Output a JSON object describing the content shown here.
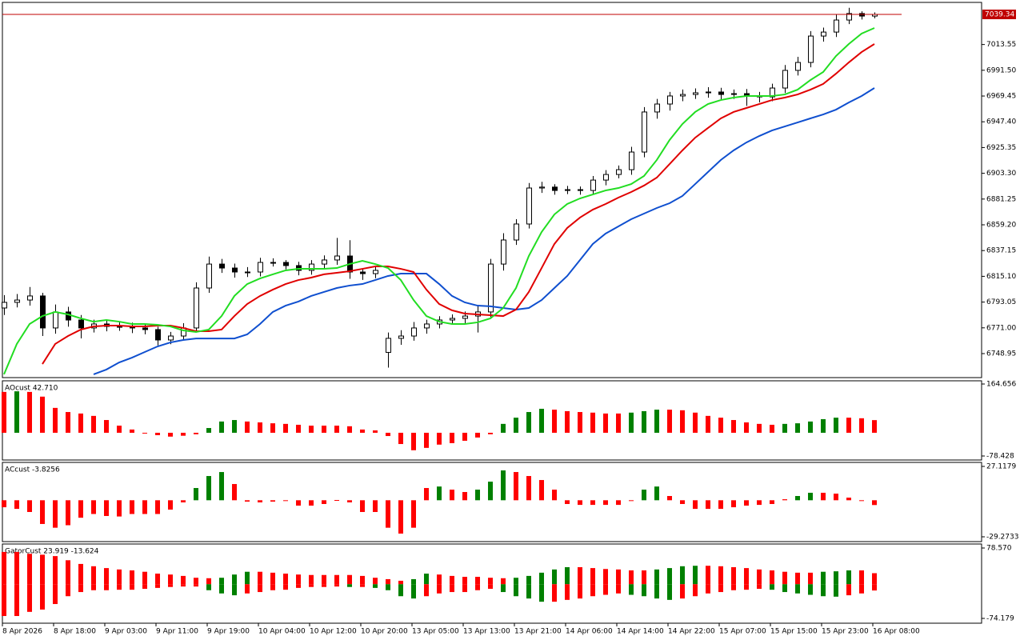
{
  "chart_data": [
    {
      "type": "candlestick",
      "categories": [
        "8 Apr 2026",
        null,
        null,
        null,
        "8 Apr 18:00",
        null,
        null,
        null,
        "9 Apr 03:00",
        null,
        null,
        null,
        "9 Apr 11:00",
        null,
        null,
        null,
        "9 Apr 19:00",
        null,
        null,
        null,
        "10 Apr 04:00",
        null,
        null,
        null,
        "10 Apr 12:00",
        null,
        null,
        null,
        "10 Apr 20:00",
        null,
        null,
        null,
        "13 Apr 05:00",
        null,
        null,
        null,
        "13 Apr 13:00",
        null,
        null,
        null,
        "13 Apr 21:00",
        null,
        null,
        null,
        "14 Apr 06:00",
        null,
        null,
        null,
        "14 Apr 14:00",
        null,
        null,
        null,
        "14 Apr 22:00",
        null,
        null,
        null,
        "15 Apr 07:00",
        null,
        null,
        null,
        "15 Apr 15:00",
        null,
        null,
        null,
        "15 Apr 23:00",
        null,
        null,
        null,
        "16 Apr 08:00"
      ],
      "open": [
        6788.0,
        6792.8,
        6794.8,
        6798.3,
        6770.9,
        6784.6,
        6777.7,
        6770.9,
        6774.3,
        6772.2,
        6772.2,
        6770.9,
        6769.5,
        6760.6,
        6764.0,
        6770.9,
        6805.1,
        6825.6,
        6822.2,
        6818.8,
        6818.8,
        6827.0,
        6827.0,
        6824.3,
        6820.2,
        6825.6,
        6829.1,
        6832.5,
        6818.8,
        6817.4,
        6750.0,
        6762.0,
        6764.0,
        6770.9,
        6774.3,
        6777.7,
        6779.1,
        6781.1,
        6784.6,
        6825.6,
        6846.2,
        6859.9,
        6890.7,
        6891.5,
        6888.6,
        6889.3,
        6888.6,
        6897.5,
        6902.3,
        6906.4,
        6921.5,
        6955.8,
        6962.6,
        6969.5,
        6970.8,
        6972.2,
        6972.9,
        6970.8,
        6971.5,
        6969.5,
        6968.7,
        6976.3,
        6991.4,
        6998.2,
        7020.8,
        7024.2,
        7034.5,
        7040.1,
        7037.9
      ],
      "high": [
        6799.0,
        6800.0,
        6806.0,
        6801.0,
        6791.0,
        6789.0,
        6782.0,
        6778.0,
        6777.5,
        6776.0,
        6775.5,
        6774.0,
        6772.0,
        6767.5,
        6775.0,
        6810.0,
        6832.0,
        6830.0,
        6826.0,
        6823.0,
        6831.0,
        6830.5,
        6829.0,
        6827.5,
        6829.0,
        6833.0,
        6848.0,
        6846.0,
        6822.0,
        6824.0,
        6767.0,
        6769.0,
        6776.0,
        6778.0,
        6781.0,
        6782.5,
        6785.0,
        6790.0,
        6830.0,
        6852.0,
        6864.0,
        6895.0,
        6896.0,
        6894.0,
        6892.5,
        6892.0,
        6901.0,
        6906.0,
        6910.0,
        6926.0,
        6960.0,
        6967.0,
        6973.0,
        6975.0,
        6976.0,
        6977.0,
        6976.5,
        6975.0,
        6975.5,
        6973.0,
        6980.0,
        6996.0,
        7003.0,
        7025.0,
        7028.0,
        7039.0,
        7045.0,
        7042.0,
        7041.0
      ],
      "low": [
        6782.0,
        6788.5,
        6790.0,
        6764.0,
        6766.0,
        6772.0,
        6762.0,
        6767.0,
        6768.0,
        6768.5,
        6766.5,
        6765.5,
        6756.0,
        6757.0,
        6760.5,
        6767.0,
        6801.0,
        6818.0,
        6814.0,
        6814.5,
        6815.0,
        6823.5,
        6821.0,
        6816.0,
        6816.5,
        6822.0,
        6825.0,
        6813.0,
        6812.0,
        6813.5,
        6737.0,
        6756.5,
        6760.0,
        6766.0,
        6770.5,
        6774.0,
        6775.0,
        6767.0,
        6780.0,
        6820.0,
        6842.0,
        6856.0,
        6886.5,
        6885.0,
        6885.5,
        6885.0,
        6885.5,
        6893.0,
        6899.0,
        6902.0,
        6917.0,
        6950.0,
        6957.0,
        6965.0,
        6967.0,
        6968.0,
        6966.0,
        6967.0,
        6961.0,
        6964.0,
        6965.0,
        6972.0,
        6987.0,
        6994.0,
        7016.0,
        7020.0,
        7031.0,
        7035.0,
        7036.0
      ],
      "close": [
        6792.8,
        6794.8,
        6798.3,
        6770.9,
        6784.6,
        6777.7,
        6770.9,
        6774.3,
        6772.2,
        6772.2,
        6770.9,
        6769.5,
        6760.6,
        6764.0,
        6770.9,
        6805.1,
        6825.6,
        6822.2,
        6818.8,
        6818.8,
        6827.0,
        6827.0,
        6824.3,
        6820.2,
        6825.6,
        6829.1,
        6832.5,
        6818.8,
        6817.4,
        6820.2,
        6762.0,
        6764.0,
        6770.9,
        6774.3,
        6777.7,
        6779.1,
        6781.1,
        6784.6,
        6825.6,
        6846.2,
        6859.9,
        6890.7,
        6891.5,
        6888.6,
        6889.3,
        6888.6,
        6897.5,
        6902.3,
        6906.4,
        6921.5,
        6955.8,
        6962.6,
        6969.5,
        6970.8,
        6972.2,
        6972.9,
        6970.8,
        6971.5,
        6969.5,
        6968.7,
        6976.3,
        6991.4,
        6998.2,
        7020.8,
        7024.2,
        7034.5,
        7040.1,
        7037.9,
        7039.34
      ],
      "series": [
        {
          "color": "#0f4fcf",
          "values": [
            null,
            null,
            null,
            null,
            null,
            null,
            null,
            6731.2,
            6735.3,
            6741.4,
            6745.5,
            6750.3,
            6755.1,
            6758.5,
            6760.6,
            6761.9,
            6761.9,
            6761.9,
            6761.9,
            6765.4,
            6774.3,
            6784.6,
            6790.0,
            6793.5,
            6798.3,
            6801.7,
            6805.1,
            6807.2,
            6808.5,
            6811.9,
            6815.4,
            6817.4,
            6817.4,
            6817.4,
            6808.5,
            6798.3,
            6792.8,
            6790.0,
            6789.4,
            6788.0,
            6786.6,
            6788.0,
            6794.8,
            6805.1,
            6815.4,
            6829.1,
            6842.8,
            6851.7,
            6857.8,
            6864.0,
            6868.8,
            6873.6,
            6877.7,
            6883.9,
            6894.1,
            6904.4,
            6914.7,
            6922.9,
            6929.7,
            6935.2,
            6940.0,
            6943.4,
            6946.8,
            6950.3,
            6953.7,
            6957.8,
            6963.9,
            6969.5,
            6976.3
          ]
        },
        {
          "color": "#e00000",
          "values": [
            null,
            null,
            null,
            6740.0,
            6757.2,
            6764.0,
            6769.5,
            6772.2,
            6772.9,
            6772.9,
            6772.2,
            6772.2,
            6772.9,
            6772.9,
            6770.9,
            6768.1,
            6768.1,
            6769.5,
            6781.1,
            6791.4,
            6798.3,
            6803.7,
            6808.5,
            6811.9,
            6814.0,
            6816.8,
            6818.1,
            6819.5,
            6821.5,
            6823.6,
            6823.6,
            6821.5,
            6818.8,
            6803.7,
            6791.4,
            6786.0,
            6783.2,
            6782.5,
            6781.8,
            6781.1,
            6786.6,
            6801.7,
            6822.2,
            6842.8,
            6856.5,
            6865.4,
            6872.2,
            6877.0,
            6882.5,
            6887.3,
            6892.8,
            6899.6,
            6911.2,
            6922.9,
            6933.8,
            6942.1,
            6950.3,
            6955.8,
            6959.2,
            6962.6,
            6966.0,
            6968.1,
            6970.8,
            6974.9,
            6979.8,
            6988.6,
            6998.2,
            7007.1,
            7014.0
          ]
        },
        {
          "color": "#22dd22",
          "values": [
            6731.2,
            6757.2,
            6774.3,
            6781.1,
            6784.6,
            6782.5,
            6779.1,
            6776.3,
            6777.7,
            6776.3,
            6774.3,
            6774.3,
            6773.6,
            6772.2,
            6768.8,
            6767.4,
            6769.5,
            6781.1,
            6798.3,
            6808.5,
            6813.3,
            6816.8,
            6820.2,
            6821.5,
            6821.5,
            6821.5,
            6822.2,
            6825.6,
            6828.4,
            6825.6,
            6822.2,
            6811.9,
            6794.8,
            6781.1,
            6776.3,
            6774.3,
            6774.3,
            6775.7,
            6779.1,
            6788.0,
            6805.1,
            6832.5,
            6853.0,
            6868.1,
            6877.0,
            6881.8,
            6885.2,
            6888.6,
            6890.7,
            6894.1,
            6901.0,
            6914.7,
            6931.8,
            6945.5,
            6955.8,
            6962.6,
            6966.0,
            6968.1,
            6969.5,
            6969.5,
            6969.5,
            6970.8,
            6974.9,
            6983.1,
            6990.0,
            7003.7,
            7014.0,
            7022.9,
            7027.7
          ]
        }
      ],
      "last_price": 7039.34,
      "last_price_color": "#c00000",
      "ylim": [
        6728.4,
        7049.6
      ],
      "yticks": [
        7013.55,
        {
          "value": 6991.5,
          "label": "6991.50"
        },
        6969.45,
        {
          "value": 6947.4,
          "label": "6947.40"
        },
        6925.35,
        {
          "value": 6903.3,
          "label": "6903.30"
        },
        6881.25,
        {
          "value": 6859.2,
          "label": "6859.20"
        },
        6837.15,
        {
          "value": 6815.1,
          "label": "6815.10"
        },
        6793.05,
        {
          "value": 6771,
          "label": "6771.00"
        },
        6748.95
      ]
    },
    {
      "type": "histogram",
      "title": "AOcust 42.710",
      "up_color": "#008000",
      "down_color": "#ff0000",
      "series": [
        {
          "values": [
            138,
            140,
            138,
            122,
            84,
            70,
            65,
            57,
            43,
            24,
            11,
            -2,
            -8,
            -13,
            -10,
            -5,
            16,
            38,
            43,
            38,
            35,
            32,
            30,
            27,
            24,
            24,
            24,
            22,
            11,
            8,
            -11,
            -38,
            -59,
            -51,
            -40,
            -35,
            -27,
            -16,
            -5,
            30,
            51,
            70,
            81,
            78,
            73,
            70,
            68,
            65,
            65,
            68,
            73,
            78,
            78,
            76,
            68,
            57,
            51,
            43,
            35,
            30,
            27,
            30,
            32,
            38,
            46,
            51,
            51,
            49,
            42.71
          ]
        }
      ],
      "ylim": [
        -78.428,
        164.656
      ],
      "yticks": [
        164.656,
        -78.428
      ]
    },
    {
      "type": "histogram",
      "title": "ACcust -3.8256",
      "up_color": "#008000",
      "down_color": "#ff0000",
      "series": [
        {
          "values": [
            -5.6,
            -6.9,
            -9.4,
            -19,
            -22,
            -20,
            -14,
            -11,
            -12.6,
            -13,
            -11,
            -11,
            -11,
            -7.5,
            -1.7,
            9.8,
            19.4,
            22.6,
            13,
            -1.1,
            -1.7,
            -1.1,
            -0.4,
            -4.3,
            -4.3,
            -3,
            0.2,
            -1.7,
            -9.4,
            -9.4,
            -22,
            -26.7,
            -22,
            9.8,
            11,
            8.5,
            6.6,
            8.5,
            14.9,
            23.9,
            22.6,
            19.4,
            16.2,
            8.5,
            -3,
            -3.7,
            -3.7,
            -3.7,
            -3.7,
            -0.4,
            8.5,
            11,
            3.4,
            -3,
            -6.9,
            -6.9,
            -6.9,
            -5.6,
            -4.3,
            -3.7,
            -3,
            0.8,
            3.4,
            6,
            6,
            5.3,
            2.1,
            -0.4,
            -3.8256
          ]
        }
      ],
      "ylim": [
        -29.2733,
        27.1179
      ],
      "yticks": [
        27.1179,
        -29.2733
      ]
    },
    {
      "type": "histogram",
      "title": "GatorCust 23.919 -13.624",
      "up_color": "#008000",
      "down_color": "#ff0000",
      "series": [
        {
          "values": [
            70,
            70,
            66,
            64,
            61,
            52,
            44,
            39,
            35,
            32,
            30,
            27,
            23,
            21,
            18,
            14,
            13,
            14,
            21,
            27,
            27,
            25,
            23,
            21,
            20,
            20,
            20,
            20,
            18,
            14,
            11,
            7.5,
            11,
            23,
            21,
            18,
            16,
            16,
            14,
            13,
            14,
            18,
            25,
            32,
            37,
            37,
            35,
            33,
            32,
            30,
            30,
            32,
            35,
            39,
            40,
            40,
            39,
            37,
            35,
            32,
            30,
            27,
            25,
            25,
            27,
            28,
            30,
            30,
            23.919
          ]
        },
        {
          "values": [
            -69,
            -69,
            -60,
            -55,
            -43,
            -26,
            -17,
            -13,
            -13,
            -12,
            -12,
            -10,
            -8,
            -6,
            -5,
            -5,
            -13,
            -20,
            -24,
            -20,
            -17,
            -13,
            -12,
            -8,
            -6,
            -6,
            -5,
            -6,
            -6,
            -8,
            -13,
            -26,
            -31,
            -26,
            -20,
            -17,
            -17,
            -13,
            -10,
            -17,
            -26,
            -31,
            -38,
            -38,
            -34,
            -31,
            -26,
            -23,
            -20,
            -23,
            -26,
            -31,
            -34,
            -31,
            -26,
            -20,
            -17,
            -13,
            -12,
            -10,
            -12,
            -17,
            -20,
            -23,
            -26,
            -27,
            -24,
            -20,
            -13.624
          ]
        }
      ],
      "ylim": [
        -74.179,
        78.57
      ],
      "yticks": [
        {
          "value": 78.57,
          "label": "78.570"
        },
        -74.179
      ]
    }
  ]
}
